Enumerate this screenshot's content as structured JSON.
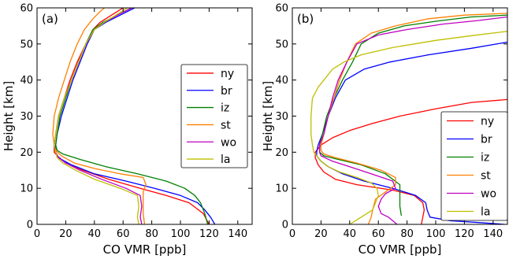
{
  "chart_data": [
    {
      "type": "line",
      "panel_label": "(a)",
      "xlabel": "CO VMR [ppb]",
      "ylabel": "Height [km]",
      "xlim": [
        0,
        150
      ],
      "ylim": [
        0,
        60
      ],
      "xticks": [
        "0",
        "20",
        "40",
        "60",
        "80",
        "100",
        "120",
        "140"
      ],
      "yticks": [
        "0",
        "10",
        "20",
        "30",
        "40",
        "50",
        "60"
      ],
      "legend_position": "center-right",
      "series": [
        {
          "name": "ny",
          "color": "#ff0000",
          "points": [
            [
              120,
              0
            ],
            [
              116,
              3
            ],
            [
              106,
              6
            ],
            [
              90,
              8
            ],
            [
              72,
              10
            ],
            [
              50,
              12.5
            ],
            [
              32,
              15
            ],
            [
              20,
              17
            ],
            [
              14,
              19
            ],
            [
              12,
              20
            ],
            [
              12,
              22
            ],
            [
              13,
              25
            ],
            [
              15,
              30
            ],
            [
              19,
              35
            ],
            [
              23,
              40
            ],
            [
              28,
              45
            ],
            [
              34,
              50
            ],
            [
              39,
              54
            ],
            [
              44,
              56
            ],
            [
              52,
              58
            ],
            [
              60,
              60
            ]
          ]
        },
        {
          "name": "br",
          "color": "#0000ff",
          "points": [
            [
              124,
              0
            ],
            [
              121,
              2
            ],
            [
              117,
              4
            ],
            [
              112,
              6
            ],
            [
              100,
              8
            ],
            [
              82,
              10
            ],
            [
              62,
              12
            ],
            [
              40,
              14
            ],
            [
              24,
              16.5
            ],
            [
              17,
              18
            ],
            [
              14,
              19
            ],
            [
              13,
              20
            ],
            [
              13,
              22
            ],
            [
              14,
              25
            ],
            [
              17,
              30
            ],
            [
              21,
              35
            ],
            [
              25,
              40
            ],
            [
              30,
              45
            ],
            [
              35,
              50
            ],
            [
              40,
              54
            ],
            [
              48,
              56
            ],
            [
              58,
              58
            ],
            [
              68,
              60
            ]
          ]
        },
        {
          "name": "iz",
          "color": "#008000",
          "points": [
            [
              119,
              0
            ],
            [
              117,
              3
            ],
            [
              114,
              6
            ],
            [
              110,
              8
            ],
            [
              103,
              10
            ],
            [
              90,
              12
            ],
            [
              70,
              14
            ],
            [
              48,
              16
            ],
            [
              30,
              18
            ],
            [
              18,
              19.5
            ],
            [
              14,
              20.5
            ],
            [
              13,
              22
            ],
            [
              14,
              25
            ],
            [
              16,
              30
            ],
            [
              20,
              35
            ],
            [
              24,
              40
            ],
            [
              29,
              45
            ],
            [
              34,
              50
            ],
            [
              39,
              54
            ],
            [
              46,
              56
            ],
            [
              56,
              58
            ],
            [
              66,
              60
            ]
          ]
        },
        {
          "name": "st",
          "color": "#ff7f00",
          "points": [
            [
              75,
              0
            ],
            [
              74,
              3
            ],
            [
              74,
              6
            ],
            [
              74,
              9
            ],
            [
              76,
              11
            ],
            [
              74,
              13
            ],
            [
              58,
              14
            ],
            [
              40,
              15.5
            ],
            [
              26,
              17
            ],
            [
              17,
              19
            ],
            [
              13,
              20.5
            ],
            [
              12,
              22
            ],
            [
              11,
              25
            ],
            [
              12,
              30
            ],
            [
              15,
              35
            ],
            [
              19,
              40
            ],
            [
              23,
              45
            ],
            [
              28,
              50
            ],
            [
              33,
              54
            ],
            [
              39,
              57
            ],
            [
              44,
              59
            ],
            [
              47,
              60
            ]
          ]
        },
        {
          "name": "wo",
          "color": "#bf00bf",
          "points": [
            [
              73,
              0
            ],
            [
              72,
              2
            ],
            [
              73,
              5
            ],
            [
              72,
              8
            ],
            [
              62,
              10
            ],
            [
              45,
              12.5
            ],
            [
              30,
              15
            ],
            [
              20,
              17
            ],
            [
              15,
              18.5
            ],
            [
              13,
              20
            ],
            [
              12,
              22
            ],
            [
              13,
              25
            ],
            [
              15,
              30
            ],
            [
              19,
              35
            ],
            [
              24,
              40
            ],
            [
              29,
              45
            ],
            [
              34,
              50
            ],
            [
              40,
              54
            ],
            [
              47,
              56
            ],
            [
              56,
              58
            ],
            [
              66,
              60
            ]
          ]
        },
        {
          "name": "la",
          "color": "#bfbf00",
          "points": [
            [
              71,
              0
            ],
            [
              70,
              2
            ],
            [
              71,
              5
            ],
            [
              70,
              8
            ],
            [
              58,
              10
            ],
            [
              40,
              12.5
            ],
            [
              27,
              15
            ],
            [
              18,
              17
            ],
            [
              14,
              18.5
            ],
            [
              13,
              20
            ],
            [
              12,
              22
            ],
            [
              13,
              25
            ],
            [
              15,
              30
            ],
            [
              19,
              35
            ],
            [
              24,
              40
            ],
            [
              29,
              45
            ],
            [
              34,
              50
            ],
            [
              40,
              54
            ],
            [
              47,
              56
            ],
            [
              55,
              58
            ],
            [
              63,
              60
            ]
          ]
        }
      ]
    },
    {
      "type": "line",
      "panel_label": "(b)",
      "xlabel": "CO VMR [ppb]",
      "ylabel": "Height [km]",
      "xlim": [
        0,
        150
      ],
      "ylim": [
        0,
        60
      ],
      "xticks": [
        "0",
        "20",
        "40",
        "60",
        "80",
        "100",
        "120",
        "140"
      ],
      "yticks": [
        "0",
        "10",
        "20",
        "30",
        "40",
        "50",
        "60"
      ],
      "legend_position": "lower-right",
      "series": [
        {
          "name": "ny",
          "color": "#ff0000",
          "points": [
            [
              90,
              0
            ],
            [
              91,
              2
            ],
            [
              92,
              4
            ],
            [
              91,
              6
            ],
            [
              85,
              8
            ],
            [
              70,
              9.5
            ],
            [
              45,
              11
            ],
            [
              30,
              12.5
            ],
            [
              22,
              14.5
            ],
            [
              18,
              16.5
            ],
            [
              16,
              18.5
            ],
            [
              16,
              20
            ],
            [
              20,
              22
            ],
            [
              28,
              24
            ],
            [
              40,
              26
            ],
            [
              56,
              28
            ],
            [
              75,
              30
            ],
            [
              100,
              32
            ],
            [
              125,
              33.8
            ],
            [
              150,
              34.6
            ]
          ]
        },
        {
          "name": "br",
          "color": "#0000ff",
          "points": [
            [
              148,
              0
            ],
            [
              130,
              0.5
            ],
            [
              110,
              1
            ],
            [
              96,
              2
            ],
            [
              94,
              4
            ],
            [
              93,
              6
            ],
            [
              86,
              8
            ],
            [
              70,
              10
            ],
            [
              50,
              12
            ],
            [
              35,
              14
            ],
            [
              25,
              16
            ],
            [
              20,
              17.5
            ],
            [
              17,
              19
            ],
            [
              17,
              20
            ],
            [
              18,
              22
            ],
            [
              21,
              25
            ],
            [
              25,
              30
            ],
            [
              30,
              35
            ],
            [
              37,
              40
            ],
            [
              50,
              43
            ],
            [
              68,
              45
            ],
            [
              95,
              47
            ],
            [
              125,
              48.8
            ],
            [
              150,
              50.5
            ]
          ]
        },
        {
          "name": "iz",
          "color": "#008000",
          "points": [
            [
              76,
              2.5
            ],
            [
              75,
              5
            ],
            [
              75,
              8
            ],
            [
              75,
              11
            ],
            [
              65,
              14
            ],
            [
              48,
              16.5
            ],
            [
              32,
              18
            ],
            [
              22,
              19
            ],
            [
              19,
              20
            ],
            [
              19,
              22
            ],
            [
              21,
              25
            ],
            [
              24,
              30
            ],
            [
              29,
              35
            ],
            [
              35,
              40
            ],
            [
              42,
              45
            ],
            [
              48,
              50
            ],
            [
              60,
              53
            ],
            [
              78,
              55
            ],
            [
              100,
              56.3
            ],
            [
              125,
              57.5
            ],
            [
              150,
              58
            ]
          ]
        },
        {
          "name": "st",
          "color": "#ff7f00",
          "points": [
            [
              53,
              0
            ],
            [
              55,
              2
            ],
            [
              56,
              4
            ],
            [
              58,
              7
            ],
            [
              65,
              9
            ],
            [
              72,
              11
            ],
            [
              72,
              13
            ],
            [
              62,
              15
            ],
            [
              45,
              17
            ],
            [
              30,
              18.5
            ],
            [
              22,
              19.5
            ],
            [
              20,
              20.5
            ],
            [
              20,
              22
            ],
            [
              22,
              25
            ],
            [
              25,
              30
            ],
            [
              29,
              35
            ],
            [
              33,
              40
            ],
            [
              38,
              45
            ],
            [
              44,
              50
            ],
            [
              55,
              53
            ],
            [
              72,
              55
            ],
            [
              95,
              57
            ],
            [
              120,
              58
            ],
            [
              150,
              58.5
            ]
          ]
        },
        {
          "name": "wo",
          "color": "#bf00bf",
          "points": [
            [
              73,
              0
            ],
            [
              67,
              2
            ],
            [
              62,
              3
            ],
            [
              60,
              5
            ],
            [
              62,
              7
            ],
            [
              65,
              8.5
            ],
            [
              72,
              10
            ],
            [
              70,
              12
            ],
            [
              55,
              14
            ],
            [
              40,
              16
            ],
            [
              28,
              17.5
            ],
            [
              20,
              19
            ],
            [
              19,
              20
            ],
            [
              19,
              22
            ],
            [
              22,
              25
            ],
            [
              25,
              30
            ],
            [
              28,
              35
            ],
            [
              32,
              40
            ],
            [
              38,
              45
            ],
            [
              45,
              50
            ],
            [
              60,
              52.5
            ],
            [
              80,
              54
            ],
            [
              105,
              55.5
            ],
            [
              130,
              56.5
            ],
            [
              150,
              57.5
            ]
          ]
        },
        {
          "name": "la",
          "color": "#bfbf00",
          "points": [
            [
              40,
              0
            ],
            [
              48,
              2
            ],
            [
              56,
              4
            ],
            [
              58,
              6
            ],
            [
              60,
              8
            ],
            [
              59,
              10
            ],
            [
              55,
              11.5
            ],
            [
              45,
              13
            ],
            [
              33,
              14.5
            ],
            [
              25,
              16
            ],
            [
              20,
              17.5
            ],
            [
              17,
              19
            ],
            [
              15,
              20
            ],
            [
              14,
              22
            ],
            [
              13,
              25
            ],
            [
              13,
              30
            ],
            [
              14,
              35
            ],
            [
              18,
              38
            ],
            [
              22,
              40
            ],
            [
              28,
              43
            ],
            [
              36,
              45
            ],
            [
              48,
              47
            ],
            [
              70,
              49
            ],
            [
              100,
              51
            ],
            [
              125,
              52.3
            ],
            [
              150,
              53.5
            ]
          ]
        }
      ]
    }
  ]
}
